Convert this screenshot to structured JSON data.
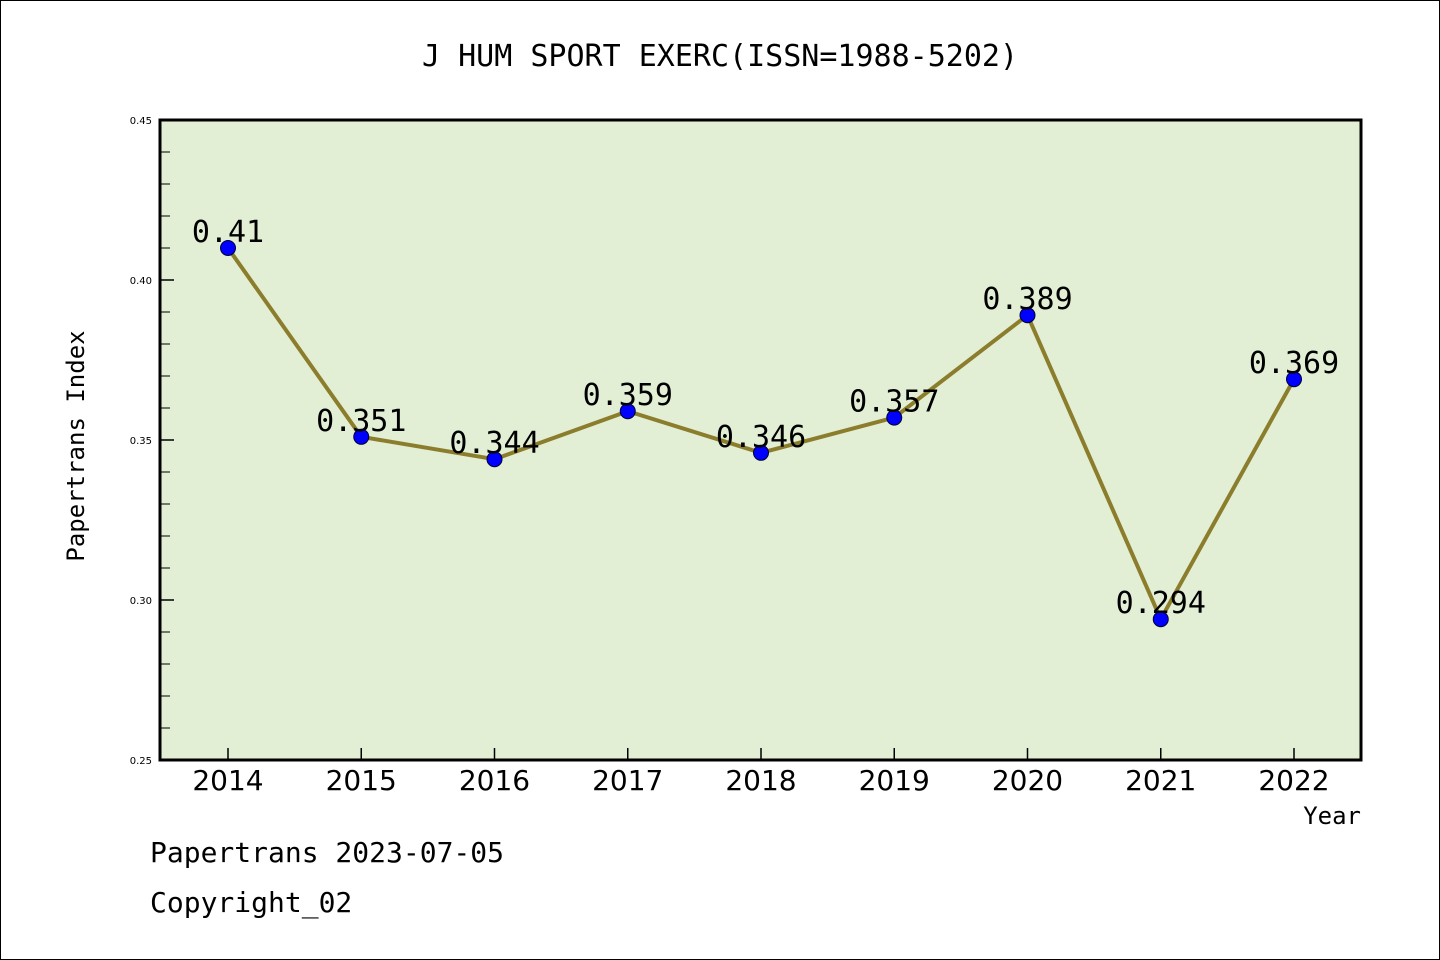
{
  "chart_data": {
    "type": "line",
    "title": "J HUM SPORT EXERC(ISSN=1988-5202)",
    "xlabel": "Year",
    "ylabel": "Papertrans Index",
    "categories": [
      "2014",
      "2015",
      "2016",
      "2017",
      "2018",
      "2019",
      "2020",
      "2021",
      "2022"
    ],
    "values": [
      0.41,
      0.351,
      0.344,
      0.359,
      0.346,
      0.357,
      0.389,
      0.294,
      0.369
    ],
    "data_labels": [
      "0.41",
      "0.351",
      "0.344",
      "0.359",
      "0.346",
      "0.357",
      "0.389",
      "0.294",
      "0.369"
    ],
    "ylim": [
      0.25,
      0.45
    ],
    "yticks": [
      0.25,
      0.3,
      0.35,
      0.4,
      0.45
    ],
    "ytick_labels": [
      "0.25",
      "0.30",
      "0.35",
      "0.40",
      "0.45"
    ],
    "grid": false,
    "colors": {
      "plot_background": "#e2efd5",
      "line": "#8b7d2c",
      "marker": "#0000ff"
    }
  },
  "footer": {
    "line1": "Papertrans 2023-07-05",
    "line2": "Copyright_02"
  }
}
